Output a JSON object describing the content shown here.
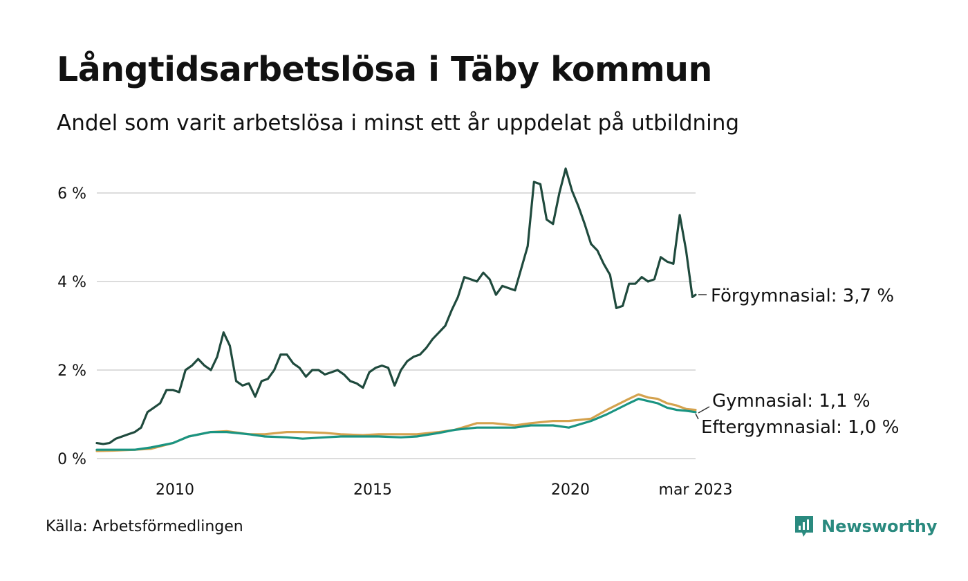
{
  "header": {
    "title": "Långtidsarbetslösa i Täby kommun",
    "subtitle": "Andel som varit arbetslösa i minst ett år uppdelat på utbildning"
  },
  "footer": {
    "source": "Källa: Arbetsförmedlingen",
    "brand": "Newsworthy",
    "brand_color": "#2a8a7f"
  },
  "chart_data": {
    "type": "line",
    "title": "Långtidsarbetslösa i Täby kommun",
    "subtitle": "Andel som varit arbetslösa i minst ett år uppdelat på utbildning",
    "x_range": [
      "2008-01",
      "2023-03"
    ],
    "ylim": [
      0,
      6.6
    ],
    "y_ticks": [
      {
        "value": 0,
        "label": "0 %"
      },
      {
        "value": 2,
        "label": "2 %"
      },
      {
        "value": 4,
        "label": "4 %"
      },
      {
        "value": 6,
        "label": "6 %"
      }
    ],
    "x_ticks": [
      {
        "date": "2010-01",
        "label": "2010"
      },
      {
        "date": "2015-01",
        "label": "2015"
      },
      {
        "date": "2020-01",
        "label": "2020"
      },
      {
        "date": "2023-03",
        "label": "mar 2023"
      }
    ],
    "grid": "horizontal",
    "series": [
      {
        "name": "Förgymnasial",
        "end_label": "Förgymnasial: 3,7 %",
        "color": "#1f4a3d",
        "points": [
          [
            "2008-01",
            0.35
          ],
          [
            "2008-03",
            0.33
          ],
          [
            "2008-05",
            0.35
          ],
          [
            "2008-07",
            0.45
          ],
          [
            "2008-09",
            0.5
          ],
          [
            "2008-11",
            0.55
          ],
          [
            "2009-01",
            0.6
          ],
          [
            "2009-03",
            0.7
          ],
          [
            "2009-05",
            1.05
          ],
          [
            "2009-07",
            1.15
          ],
          [
            "2009-09",
            1.25
          ],
          [
            "2009-11",
            1.55
          ],
          [
            "2010-01",
            1.55
          ],
          [
            "2010-03",
            1.5
          ],
          [
            "2010-05",
            2.0
          ],
          [
            "2010-07",
            2.1
          ],
          [
            "2010-09",
            2.25
          ],
          [
            "2010-11",
            2.1
          ],
          [
            "2011-01",
            2.0
          ],
          [
            "2011-03",
            2.3
          ],
          [
            "2011-05",
            2.85
          ],
          [
            "2011-07",
            2.55
          ],
          [
            "2011-09",
            1.75
          ],
          [
            "2011-11",
            1.65
          ],
          [
            "2012-01",
            1.7
          ],
          [
            "2012-03",
            1.4
          ],
          [
            "2012-05",
            1.75
          ],
          [
            "2012-07",
            1.8
          ],
          [
            "2012-09",
            2.0
          ],
          [
            "2012-11",
            2.35
          ],
          [
            "2013-01",
            2.35
          ],
          [
            "2013-03",
            2.15
          ],
          [
            "2013-05",
            2.05
          ],
          [
            "2013-07",
            1.85
          ],
          [
            "2013-09",
            2.0
          ],
          [
            "2013-11",
            2.0
          ],
          [
            "2014-01",
            1.9
          ],
          [
            "2014-03",
            1.95
          ],
          [
            "2014-05",
            2.0
          ],
          [
            "2014-07",
            1.9
          ],
          [
            "2014-09",
            1.75
          ],
          [
            "2014-11",
            1.7
          ],
          [
            "2015-01",
            1.6
          ],
          [
            "2015-03",
            1.95
          ],
          [
            "2015-05",
            2.05
          ],
          [
            "2015-07",
            2.1
          ],
          [
            "2015-09",
            2.05
          ],
          [
            "2015-11",
            1.65
          ],
          [
            "2016-01",
            2.0
          ],
          [
            "2016-03",
            2.2
          ],
          [
            "2016-05",
            2.3
          ],
          [
            "2016-07",
            2.35
          ],
          [
            "2016-09",
            2.5
          ],
          [
            "2016-11",
            2.7
          ],
          [
            "2017-01",
            2.85
          ],
          [
            "2017-03",
            3.0
          ],
          [
            "2017-05",
            3.35
          ],
          [
            "2017-07",
            3.65
          ],
          [
            "2017-09",
            4.1
          ],
          [
            "2017-11",
            4.05
          ],
          [
            "2018-01",
            4.0
          ],
          [
            "2018-03",
            4.2
          ],
          [
            "2018-05",
            4.05
          ],
          [
            "2018-07",
            3.7
          ],
          [
            "2018-09",
            3.9
          ],
          [
            "2018-11",
            3.85
          ],
          [
            "2019-01",
            3.8
          ],
          [
            "2019-03",
            4.3
          ],
          [
            "2019-05",
            4.8
          ],
          [
            "2019-07",
            6.25
          ],
          [
            "2019-09",
            6.2
          ],
          [
            "2019-11",
            5.4
          ],
          [
            "2020-01",
            5.3
          ],
          [
            "2020-03",
            6.0
          ],
          [
            "2020-05",
            6.55
          ],
          [
            "2020-07",
            6.05
          ],
          [
            "2020-09",
            5.7
          ],
          [
            "2020-11",
            5.3
          ],
          [
            "2021-01",
            4.85
          ],
          [
            "2021-03",
            4.7
          ],
          [
            "2021-05",
            4.4
          ],
          [
            "2021-07",
            4.15
          ],
          [
            "2021-09",
            3.4
          ],
          [
            "2021-11",
            3.45
          ],
          [
            "2022-01",
            3.95
          ],
          [
            "2022-03",
            3.95
          ],
          [
            "2022-05",
            4.1
          ],
          [
            "2022-07",
            4.0
          ],
          [
            "2022-09",
            4.05
          ],
          [
            "2022-11",
            4.55
          ],
          [
            "2023-01",
            4.45
          ],
          [
            "2023-03",
            4.4
          ],
          [
            "2023-05",
            5.5
          ],
          [
            "2023-07",
            4.7
          ],
          [
            "2023-09",
            3.65
          ],
          [
            "2023-10",
            3.7
          ]
        ]
      },
      {
        "name": "Gymnasial",
        "end_label": "Gymnasial: 1,1 %",
        "color": "#d4a24e",
        "points": [
          [
            "2008-01",
            0.17
          ],
          [
            "2008-06",
            0.18
          ],
          [
            "2009-01",
            0.2
          ],
          [
            "2009-06",
            0.22
          ],
          [
            "2010-01",
            0.35
          ],
          [
            "2010-06",
            0.5
          ],
          [
            "2011-01",
            0.6
          ],
          [
            "2011-06",
            0.62
          ],
          [
            "2012-01",
            0.55
          ],
          [
            "2012-06",
            0.55
          ],
          [
            "2013-01",
            0.6
          ],
          [
            "2013-06",
            0.6
          ],
          [
            "2014-01",
            0.58
          ],
          [
            "2014-06",
            0.55
          ],
          [
            "2015-01",
            0.53
          ],
          [
            "2015-06",
            0.55
          ],
          [
            "2016-01",
            0.55
          ],
          [
            "2016-06",
            0.55
          ],
          [
            "2017-01",
            0.6
          ],
          [
            "2017-06",
            0.65
          ],
          [
            "2018-01",
            0.8
          ],
          [
            "2018-06",
            0.8
          ],
          [
            "2019-01",
            0.75
          ],
          [
            "2019-06",
            0.8
          ],
          [
            "2020-01",
            0.85
          ],
          [
            "2020-06",
            0.85
          ],
          [
            "2021-01",
            0.9
          ],
          [
            "2021-06",
            1.1
          ],
          [
            "2022-01",
            1.35
          ],
          [
            "2022-04",
            1.45
          ],
          [
            "2022-07",
            1.38
          ],
          [
            "2022-10",
            1.35
          ],
          [
            "2023-01",
            1.25
          ],
          [
            "2023-04",
            1.2
          ],
          [
            "2023-07",
            1.12
          ],
          [
            "2023-10",
            1.1
          ]
        ]
      },
      {
        "name": "Eftergymnasial",
        "end_label": "Eftergymnasial: 1,0 %",
        "color": "#1a9482",
        "points": [
          [
            "2008-01",
            0.2
          ],
          [
            "2008-06",
            0.2
          ],
          [
            "2009-01",
            0.2
          ],
          [
            "2009-06",
            0.25
          ],
          [
            "2010-01",
            0.35
          ],
          [
            "2010-06",
            0.5
          ],
          [
            "2011-01",
            0.6
          ],
          [
            "2011-06",
            0.6
          ],
          [
            "2012-01",
            0.55
          ],
          [
            "2012-06",
            0.5
          ],
          [
            "2013-01",
            0.48
          ],
          [
            "2013-06",
            0.45
          ],
          [
            "2014-01",
            0.48
          ],
          [
            "2014-06",
            0.5
          ],
          [
            "2015-01",
            0.5
          ],
          [
            "2015-06",
            0.5
          ],
          [
            "2016-01",
            0.48
          ],
          [
            "2016-06",
            0.5
          ],
          [
            "2017-01",
            0.58
          ],
          [
            "2017-06",
            0.65
          ],
          [
            "2018-01",
            0.7
          ],
          [
            "2018-06",
            0.7
          ],
          [
            "2019-01",
            0.7
          ],
          [
            "2019-06",
            0.75
          ],
          [
            "2020-01",
            0.75
          ],
          [
            "2020-06",
            0.7
          ],
          [
            "2021-01",
            0.85
          ],
          [
            "2021-06",
            1.0
          ],
          [
            "2022-01",
            1.25
          ],
          [
            "2022-04",
            1.35
          ],
          [
            "2022-07",
            1.3
          ],
          [
            "2022-10",
            1.25
          ],
          [
            "2023-01",
            1.15
          ],
          [
            "2023-04",
            1.1
          ],
          [
            "2023-07",
            1.08
          ],
          [
            "2023-10",
            1.05
          ]
        ]
      }
    ]
  }
}
